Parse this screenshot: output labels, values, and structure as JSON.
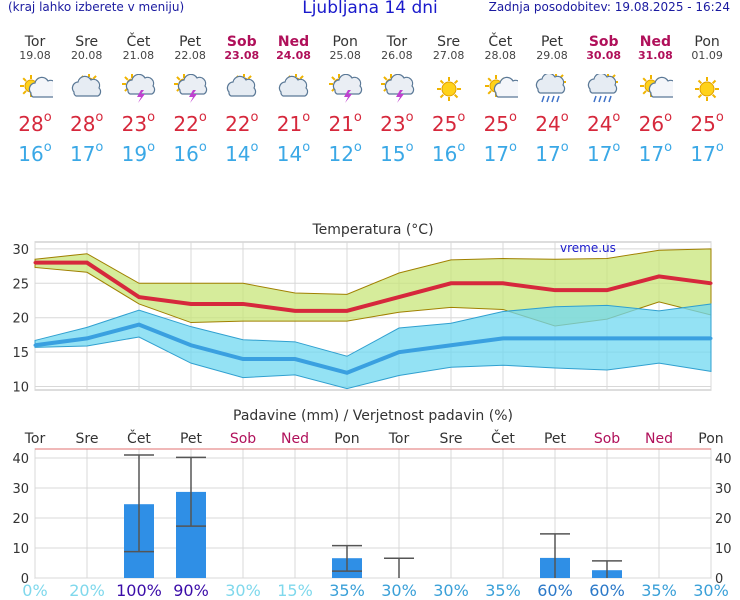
{
  "header": {
    "left_note": "(kraj lahko izberete v meniju)",
    "title": "Ljubljana 14 dni",
    "updated": "Zadnja posodobitev: 19.08.2025 - 16:24"
  },
  "days": [
    {
      "name": "Tor",
      "date": "19.08",
      "weekend": false,
      "icon": "sun-cloud-icon",
      "tmax": "28",
      "tmin": "16"
    },
    {
      "name": "Sre",
      "date": "20.08",
      "weekend": false,
      "icon": "cloud-sun-icon",
      "tmax": "28",
      "tmin": "17"
    },
    {
      "name": "Čet",
      "date": "21.08",
      "weekend": false,
      "icon": "thunderstorm-icon",
      "tmax": "23",
      "tmin": "19"
    },
    {
      "name": "Pet",
      "date": "22.08",
      "weekend": false,
      "icon": "thunderstorm-icon",
      "tmax": "22",
      "tmin": "16"
    },
    {
      "name": "Sob",
      "date": "23.08",
      "weekend": true,
      "icon": "cloud-sun-icon",
      "tmax": "22",
      "tmin": "14"
    },
    {
      "name": "Ned",
      "date": "24.08",
      "weekend": true,
      "icon": "cloud-sun-icon",
      "tmax": "21",
      "tmin": "14"
    },
    {
      "name": "Pon",
      "date": "25.08",
      "weekend": false,
      "icon": "thunderstorm-icon",
      "tmax": "21",
      "tmin": "12"
    },
    {
      "name": "Tor",
      "date": "26.08",
      "weekend": false,
      "icon": "thunderstorm-icon",
      "tmax": "23",
      "tmin": "15"
    },
    {
      "name": "Sre",
      "date": "27.08",
      "weekend": false,
      "icon": "sun-icon",
      "tmax": "25",
      "tmin": "16"
    },
    {
      "name": "Čet",
      "date": "28.08",
      "weekend": false,
      "icon": "sun-cloud-icon",
      "tmax": "25",
      "tmin": "17"
    },
    {
      "name": "Pet",
      "date": "29.08",
      "weekend": false,
      "icon": "rain-shower-icon",
      "tmax": "24",
      "tmin": "17"
    },
    {
      "name": "Sob",
      "date": "30.08",
      "weekend": true,
      "icon": "rain-shower-icon",
      "tmax": "24",
      "tmin": "17"
    },
    {
      "name": "Ned",
      "date": "31.08",
      "weekend": true,
      "icon": "sun-cloud-icon",
      "tmax": "26",
      "tmin": "17"
    },
    {
      "name": "Pon",
      "date": "01.09",
      "weekend": false,
      "icon": "sun-icon",
      "tmax": "25",
      "tmin": "17"
    }
  ],
  "chart_data": [
    {
      "type": "line",
      "title": "Temperatura (°C)",
      "watermark": "vreme.us",
      "ylim": [
        9.5,
        31
      ],
      "yticks": [
        10,
        15,
        20,
        25,
        30
      ],
      "x": [
        "19.08",
        "20.08",
        "21.08",
        "22.08",
        "23.08",
        "24.08",
        "25.08",
        "26.08",
        "27.08",
        "28.08",
        "29.08",
        "30.08",
        "31.08",
        "01.09"
      ],
      "series": [
        {
          "name": "",
          "role": "max",
          "color": "#d6283c",
          "values": [
            28,
            28,
            23,
            22,
            22,
            21,
            21,
            23,
            25,
            25,
            24,
            24,
            26,
            25
          ]
        },
        {
          "name": "",
          "role": "min",
          "color": "#3aa0e0",
          "values": [
            16,
            17,
            19,
            16,
            14,
            14,
            12,
            15,
            16,
            17,
            17,
            17,
            17,
            17
          ]
        }
      ],
      "max_band": {
        "upper": [
          28.5,
          29.3,
          25,
          25,
          25,
          23.6,
          23.4,
          26.5,
          28.4,
          28.6,
          28.5,
          28.6,
          29.8,
          30
        ],
        "lower": [
          27.3,
          26.6,
          22,
          19.3,
          19.5,
          19.5,
          19.5,
          20.8,
          21.5,
          21.2,
          18.8,
          19.8,
          22.3,
          20.4
        ]
      },
      "min_band": {
        "upper": [
          16.7,
          18.6,
          21.1,
          18.7,
          16.8,
          16.5,
          14.4,
          18.5,
          19.2,
          20.9,
          21.6,
          21.8,
          21,
          22
        ],
        "lower": [
          15.7,
          15.9,
          17.2,
          13.4,
          11.3,
          11.7,
          9.7,
          11.6,
          12.8,
          13.1,
          12.7,
          12.4,
          13.4,
          12.2
        ]
      },
      "grid": true
    },
    {
      "type": "bar",
      "title": "Padavine (mm) / Verjetnost padavin (%)",
      "categories": [
        "Tor",
        "Sre",
        "Čet",
        "Pet",
        "Sob",
        "Ned",
        "Pon",
        "Tor",
        "Sre",
        "Čet",
        "Pet",
        "Sob",
        "Ned",
        "Pon"
      ],
      "weekend": [
        false,
        false,
        false,
        false,
        true,
        true,
        false,
        false,
        false,
        false,
        false,
        true,
        true,
        false
      ],
      "ylim": [
        0,
        43
      ],
      "yticks": [
        0,
        10,
        20,
        30,
        40
      ],
      "values": [
        0,
        0,
        24.6,
        28.7,
        0,
        0,
        6.6,
        0,
        0,
        0,
        6.7,
        2.6,
        0,
        0
      ],
      "err_low": [
        0,
        0,
        8.8,
        17.3,
        0,
        0,
        2.3,
        0,
        0,
        0,
        0,
        0,
        0,
        0
      ],
      "err_high": [
        0,
        0,
        41,
        40.2,
        0,
        0,
        10.8,
        6.6,
        0,
        0,
        14.7,
        5.7,
        0,
        0
      ],
      "probability": [
        "0%",
        "20%",
        "100%",
        "90%",
        "30%",
        "15%",
        "35%",
        "30%",
        "30%",
        "35%",
        "60%",
        "60%",
        "35%",
        "30%"
      ],
      "prob_color": [
        "#7fd8ec",
        "#7fd8ec",
        "#3a0ca8",
        "#3a0ca8",
        "#7fd8ec",
        "#7fd8ec",
        "#3aa0d8",
        "#3aa0d8",
        "#3aa0d8",
        "#3aa0d8",
        "#2a78c8",
        "#2a78c8",
        "#3aa0d8",
        "#3aa0d8"
      ],
      "bar_color": "#2f8fe6",
      "grid": true
    }
  ]
}
